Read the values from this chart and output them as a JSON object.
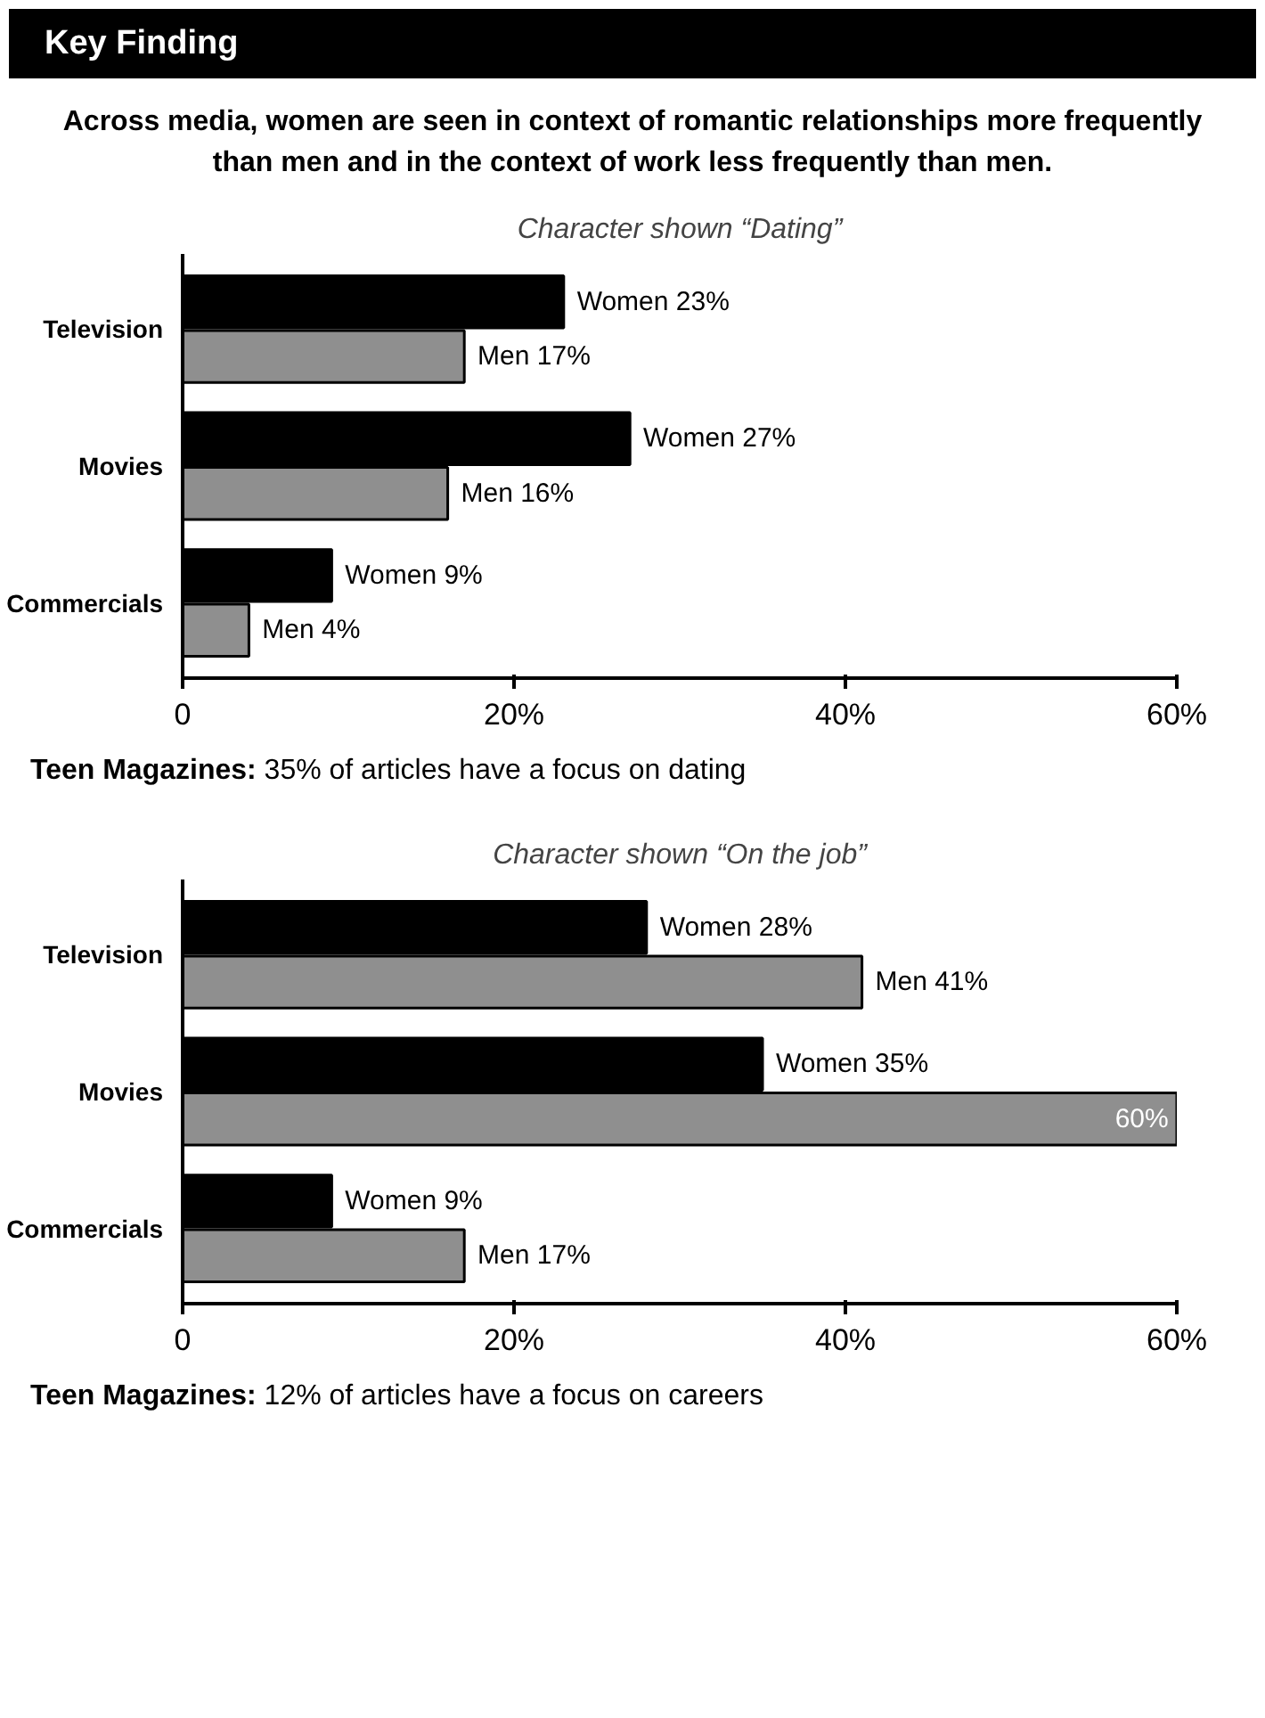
{
  "chart_data": [
    {
      "type": "bar",
      "orientation": "horizontal",
      "title": "Character shown “Dating”",
      "annotations": [
        "Key Finding",
        "Across media, women are seen in context of romantic relationships more frequently than men and in the context of work less frequently than men.",
        "Teen Magazines: 35% of articles have a focus on dating"
      ],
      "categories": [
        "Television",
        "Movies",
        "Commercials"
      ],
      "series": [
        {
          "name": "Women",
          "color": "#000000",
          "values": [
            23,
            27,
            9
          ],
          "value_labels": [
            "23%",
            "27%",
            "9%"
          ]
        },
        {
          "name": "Men",
          "color": "#8f8f8f",
          "values": [
            17,
            16,
            4
          ],
          "value_labels": [
            "17%",
            "16%",
            "4%"
          ]
        }
      ],
      "xlim": [
        0,
        60
      ],
      "xticks": [
        0,
        {
          "value": 20,
          "label": "20%"
        },
        {
          "value": 40,
          "label": "40%"
        },
        {
          "value": 60,
          "label": "60%"
        }
      ],
      "grid": false,
      "legend": false
    },
    {
      "type": "bar",
      "orientation": "horizontal",
      "title": "Character shown “On the job”",
      "annotations": [
        "Teen Magazines: 12% of articles have a focus on careers"
      ],
      "categories": [
        "Television",
        "Movies",
        "Commercials"
      ],
      "series": [
        {
          "name": "Women",
          "color": "#000000",
          "values": [
            28,
            35,
            9
          ],
          "value_labels": [
            "28%",
            "35%",
            "9%"
          ]
        },
        {
          "name": "Men",
          "color": "#8f8f8f",
          "values": [
            41,
            60,
            17
          ],
          "value_labels": [
            "41%",
            "60%",
            "17%"
          ]
        }
      ],
      "xlim": [
        0,
        60
      ],
      "xticks": [
        0,
        {
          "value": 20,
          "label": "20%"
        },
        {
          "value": 40,
          "label": "40%"
        },
        {
          "value": 60,
          "label": "60%"
        }
      ],
      "grid": false,
      "legend": false
    }
  ]
}
